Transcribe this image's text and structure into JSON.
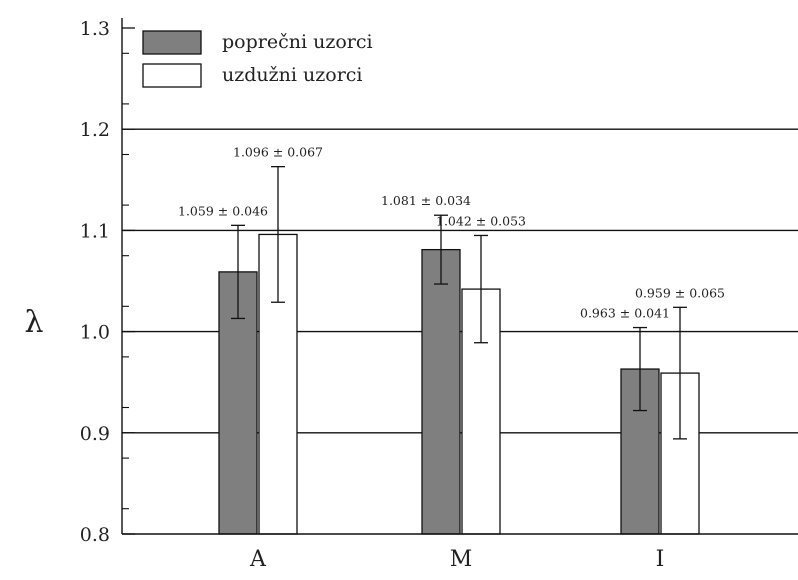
{
  "chart_data": {
    "type": "bar",
    "categories": [
      "A",
      "M",
      "I"
    ],
    "ylabel": "λ",
    "ylim": [
      0.8,
      1.3
    ],
    "yticks": [
      "0.8",
      "0.9",
      "1.0",
      "1.1",
      "1.2",
      "1.3"
    ],
    "grid": "horizontal major lines at 0.9, 1.0, 1.1, 1.2",
    "legend_position": "top-left",
    "series": [
      {
        "name": "poprečni uzorci",
        "color": "#7f7f7f",
        "values": [
          1.059,
          1.081,
          0.963
        ],
        "errors": [
          0.046,
          0.034,
          0.041
        ],
        "labels": [
          "1.059 ± 0.046",
          "1.081 ± 0.034",
          "0.963 ± 0.041"
        ]
      },
      {
        "name": "uzdužni uzorci",
        "color": "#ffffff",
        "values": [
          1.096,
          1.042,
          0.959
        ],
        "errors": [
          0.067,
          0.053,
          0.065
        ],
        "labels": [
          "1.096 ± 0.067",
          "1.042 ± 0.053",
          "0.959 ± 0.065"
        ]
      }
    ]
  }
}
